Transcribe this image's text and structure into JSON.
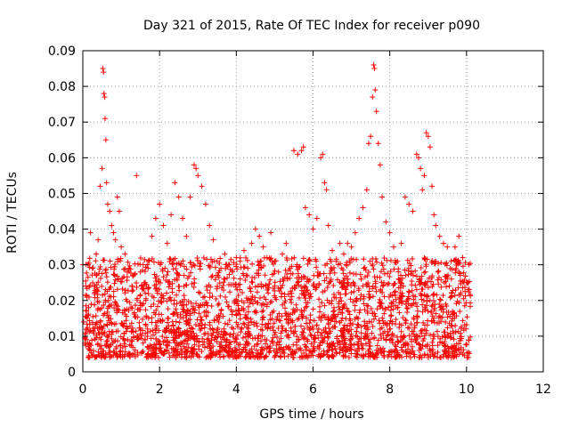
{
  "chart_data": {
    "type": "scatter",
    "title": "Day 321 of 2015, Rate Of TEC Index for receiver p090",
    "xlabel": "GPS time / hours",
    "ylabel": "ROTI / TECUs",
    "xlim": [
      0,
      12
    ],
    "ylim": [
      0,
      0.09
    ],
    "x_ticks": [
      "0",
      "2",
      "4",
      "6",
      "8",
      "10",
      "12"
    ],
    "y_ticks": [
      "0",
      "0.01",
      "0.02",
      "0.03",
      "0.04",
      "0.05",
      "0.06",
      "0.07",
      "0.08",
      "0.09"
    ],
    "grid": true,
    "marker": "+",
    "marker_color": "#ff0000",
    "series": [
      {
        "name": "ROTI",
        "points": [
          [
            0.0,
            0.03
          ],
          [
            0.02,
            0.014
          ],
          [
            0.05,
            0.008
          ],
          [
            0.1,
            0.012
          ],
          [
            0.15,
            0.018
          ],
          [
            0.2,
            0.039
          ],
          [
            0.25,
            0.029
          ],
          [
            0.3,
            0.024
          ],
          [
            0.35,
            0.033
          ],
          [
            0.4,
            0.037
          ],
          [
            0.45,
            0.052
          ],
          [
            0.5,
            0.057
          ],
          [
            0.52,
            0.085
          ],
          [
            0.54,
            0.084
          ],
          [
            0.55,
            0.078
          ],
          [
            0.57,
            0.077
          ],
          [
            0.58,
            0.071
          ],
          [
            0.6,
            0.065
          ],
          [
            0.62,
            0.053
          ],
          [
            0.65,
            0.047
          ],
          [
            0.7,
            0.045
          ],
          [
            0.75,
            0.041
          ],
          [
            0.8,
            0.039
          ],
          [
            0.85,
            0.037
          ],
          [
            0.9,
            0.049
          ],
          [
            0.95,
            0.045
          ],
          [
            1.0,
            0.035
          ],
          [
            1.1,
            0.033
          ],
          [
            1.2,
            0.029
          ],
          [
            1.3,
            0.027
          ],
          [
            1.4,
            0.055
          ],
          [
            1.5,
            0.028
          ],
          [
            1.6,
            0.025
          ],
          [
            1.7,
            0.029
          ],
          [
            1.8,
            0.038
          ],
          [
            1.9,
            0.043
          ],
          [
            2.0,
            0.047
          ],
          [
            2.1,
            0.041
          ],
          [
            2.2,
            0.036
          ],
          [
            2.3,
            0.044
          ],
          [
            2.4,
            0.053
          ],
          [
            2.5,
            0.049
          ],
          [
            2.6,
            0.043
          ],
          [
            2.7,
            0.038
          ],
          [
            2.8,
            0.049
          ],
          [
            2.9,
            0.058
          ],
          [
            2.95,
            0.057
          ],
          [
            3.0,
            0.055
          ],
          [
            3.1,
            0.052
          ],
          [
            3.2,
            0.047
          ],
          [
            3.3,
            0.041
          ],
          [
            3.4,
            0.037
          ],
          [
            3.5,
            0.031
          ],
          [
            3.6,
            0.029
          ],
          [
            3.7,
            0.033
          ],
          [
            3.8,
            0.03
          ],
          [
            3.9,
            0.028
          ],
          [
            4.0,
            0.032
          ],
          [
            4.1,
            0.031
          ],
          [
            4.2,
            0.034
          ],
          [
            4.3,
            0.029
          ],
          [
            4.4,
            0.036
          ],
          [
            4.5,
            0.04
          ],
          [
            4.6,
            0.038
          ],
          [
            4.7,
            0.035
          ],
          [
            4.8,
            0.032
          ],
          [
            4.9,
            0.039
          ],
          [
            5.0,
            0.031
          ],
          [
            5.1,
            0.028
          ],
          [
            5.2,
            0.033
          ],
          [
            5.3,
            0.036
          ],
          [
            5.4,
            0.029
          ],
          [
            5.5,
            0.062
          ],
          [
            5.6,
            0.061
          ],
          [
            5.7,
            0.062
          ],
          [
            5.75,
            0.063
          ],
          [
            5.8,
            0.046
          ],
          [
            5.9,
            0.044
          ],
          [
            6.0,
            0.04
          ],
          [
            6.1,
            0.043
          ],
          [
            6.2,
            0.06
          ],
          [
            6.25,
            0.061
          ],
          [
            6.3,
            0.053
          ],
          [
            6.35,
            0.051
          ],
          [
            6.4,
            0.041
          ],
          [
            6.5,
            0.034
          ],
          [
            6.6,
            0.031
          ],
          [
            6.7,
            0.036
          ],
          [
            6.8,
            0.033
          ],
          [
            6.9,
            0.036
          ],
          [
            7.0,
            0.035
          ],
          [
            7.1,
            0.039
          ],
          [
            7.2,
            0.043
          ],
          [
            7.3,
            0.046
          ],
          [
            7.4,
            0.051
          ],
          [
            7.45,
            0.064
          ],
          [
            7.5,
            0.066
          ],
          [
            7.55,
            0.077
          ],
          [
            7.58,
            0.086
          ],
          [
            7.6,
            0.085
          ],
          [
            7.62,
            0.079
          ],
          [
            7.65,
            0.073
          ],
          [
            7.7,
            0.064
          ],
          [
            7.75,
            0.058
          ],
          [
            7.8,
            0.049
          ],
          [
            7.9,
            0.042
          ],
          [
            8.0,
            0.039
          ],
          [
            8.1,
            0.035
          ],
          [
            8.2,
            0.031
          ],
          [
            8.3,
            0.036
          ],
          [
            8.4,
            0.049
          ],
          [
            8.5,
            0.047
          ],
          [
            8.6,
            0.045
          ],
          [
            8.7,
            0.061
          ],
          [
            8.75,
            0.06
          ],
          [
            8.8,
            0.057
          ],
          [
            8.85,
            0.051
          ],
          [
            8.9,
            0.055
          ],
          [
            8.95,
            0.067
          ],
          [
            9.0,
            0.066
          ],
          [
            9.05,
            0.063
          ],
          [
            9.1,
            0.052
          ],
          [
            9.15,
            0.044
          ],
          [
            9.2,
            0.041
          ],
          [
            9.3,
            0.038
          ],
          [
            9.4,
            0.036
          ],
          [
            9.5,
            0.035
          ],
          [
            9.6,
            0.031
          ],
          [
            9.7,
            0.035
          ],
          [
            9.8,
            0.038
          ],
          [
            9.9,
            0.032
          ],
          [
            10.0,
            0.025
          ],
          [
            10.05,
            0.023
          ]
        ]
      }
    ],
    "dense_band": {
      "x_range": [
        0.05,
        10.1
      ],
      "y_range": [
        0.004,
        0.032
      ]
    }
  }
}
